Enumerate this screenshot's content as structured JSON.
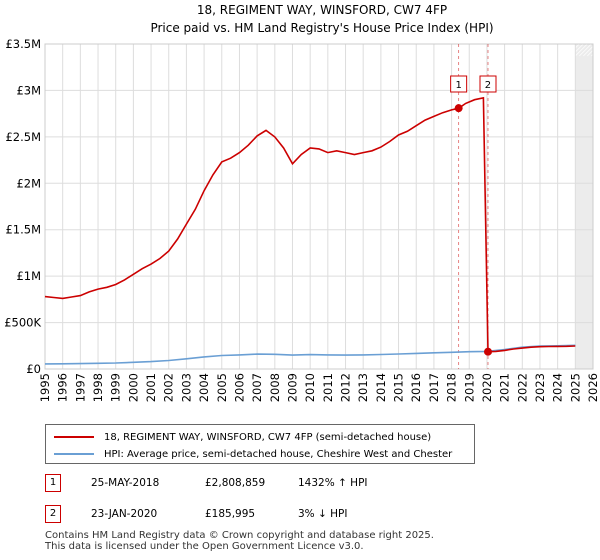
{
  "chart_data": {
    "type": "line",
    "title": "18, REGIMENT WAY, WINSFORD, CW7 4FP",
    "subtitle": "Price paid vs. HM Land Registry's House Price Index (HPI)",
    "xlim": [
      1995,
      2026
    ],
    "ylim": [
      0,
      3500000
    ],
    "x_ticks": [
      "1995",
      "1996",
      "1997",
      "1998",
      "1999",
      "2000",
      "2001",
      "2002",
      "2003",
      "2004",
      "2005",
      "2006",
      "2007",
      "2008",
      "2009",
      "2010",
      "2011",
      "2012",
      "2013",
      "2014",
      "2015",
      "2016",
      "2017",
      "2018",
      "2019",
      "2020",
      "2021",
      "2022",
      "2023",
      "2024",
      "2025",
      "2026"
    ],
    "y_ticks": [
      {
        "value": 0,
        "label": "£0"
      },
      {
        "value": 500000,
        "label": "£500K"
      },
      {
        "value": 1000000,
        "label": "£1M"
      },
      {
        "value": 1500000,
        "label": "£1.5M"
      },
      {
        "value": 2000000,
        "label": "£2M"
      },
      {
        "value": 2500000,
        "label": "£2.5M"
      },
      {
        "value": 3000000,
        "label": "£3M"
      },
      {
        "value": 3500000,
        "label": "£3.5M"
      }
    ],
    "series": [
      {
        "name": "18, REGIMENT WAY, WINSFORD, CW7 4FP (semi-detached house)",
        "color": "#cc0000",
        "points": [
          [
            1995.0,
            780000
          ],
          [
            1995.5,
            770000
          ],
          [
            1996.0,
            760000
          ],
          [
            1996.5,
            775000
          ],
          [
            1997.0,
            790000
          ],
          [
            1997.5,
            830000
          ],
          [
            1998.0,
            860000
          ],
          [
            1998.5,
            880000
          ],
          [
            1999.0,
            910000
          ],
          [
            1999.5,
            960000
          ],
          [
            2000.0,
            1020000
          ],
          [
            2000.5,
            1080000
          ],
          [
            2001.0,
            1130000
          ],
          [
            2001.5,
            1190000
          ],
          [
            2002.0,
            1270000
          ],
          [
            2002.5,
            1400000
          ],
          [
            2003.0,
            1560000
          ],
          [
            2003.5,
            1720000
          ],
          [
            2004.0,
            1920000
          ],
          [
            2004.5,
            2090000
          ],
          [
            2005.0,
            2230000
          ],
          [
            2005.5,
            2270000
          ],
          [
            2006.0,
            2330000
          ],
          [
            2006.5,
            2410000
          ],
          [
            2007.0,
            2510000
          ],
          [
            2007.5,
            2570000
          ],
          [
            2008.0,
            2500000
          ],
          [
            2008.5,
            2380000
          ],
          [
            2009.0,
            2210000
          ],
          [
            2009.5,
            2310000
          ],
          [
            2010.0,
            2380000
          ],
          [
            2010.5,
            2370000
          ],
          [
            2011.0,
            2330000
          ],
          [
            2011.5,
            2350000
          ],
          [
            2012.0,
            2330000
          ],
          [
            2012.5,
            2310000
          ],
          [
            2013.0,
            2330000
          ],
          [
            2013.5,
            2350000
          ],
          [
            2014.0,
            2390000
          ],
          [
            2014.5,
            2450000
          ],
          [
            2015.0,
            2520000
          ],
          [
            2015.5,
            2560000
          ],
          [
            2016.0,
            2620000
          ],
          [
            2016.5,
            2680000
          ],
          [
            2017.0,
            2720000
          ],
          [
            2017.5,
            2760000
          ],
          [
            2018.0,
            2790000
          ],
          [
            2018.4,
            2808859
          ],
          [
            2018.8,
            2860000
          ],
          [
            2019.3,
            2900000
          ],
          [
            2019.8,
            2920000
          ],
          [
            2020.06,
            185995
          ],
          [
            2020.5,
            190000
          ],
          [
            2021.0,
            200000
          ],
          [
            2021.5,
            215000
          ],
          [
            2022.0,
            225000
          ],
          [
            2022.5,
            235000
          ],
          [
            2023.0,
            240000
          ],
          [
            2023.5,
            242000
          ],
          [
            2024.0,
            243000
          ],
          [
            2024.5,
            245000
          ],
          [
            2025.0,
            248000
          ]
        ]
      },
      {
        "name": "HPI: Average price, semi-detached house, Cheshire West and Chester",
        "color": "#6a9fd4",
        "points": [
          [
            1995.0,
            55000
          ],
          [
            1996.0,
            56000
          ],
          [
            1997.0,
            58000
          ],
          [
            1998.0,
            61000
          ],
          [
            1999.0,
            65000
          ],
          [
            2000.0,
            72000
          ],
          [
            2001.0,
            80000
          ],
          [
            2002.0,
            92000
          ],
          [
            2003.0,
            110000
          ],
          [
            2004.0,
            130000
          ],
          [
            2005.0,
            145000
          ],
          [
            2006.0,
            152000
          ],
          [
            2007.0,
            160000
          ],
          [
            2008.0,
            158000
          ],
          [
            2009.0,
            150000
          ],
          [
            2010.0,
            155000
          ],
          [
            2011.0,
            152000
          ],
          [
            2012.0,
            150000
          ],
          [
            2013.0,
            152000
          ],
          [
            2014.0,
            156000
          ],
          [
            2015.0,
            162000
          ],
          [
            2016.0,
            168000
          ],
          [
            2017.0,
            174000
          ],
          [
            2018.0,
            180000
          ],
          [
            2019.0,
            186000
          ],
          [
            2020.0,
            190000
          ],
          [
            2021.0,
            210000
          ],
          [
            2022.0,
            235000
          ],
          [
            2023.0,
            248000
          ],
          [
            2024.0,
            250000
          ],
          [
            2025.0,
            255000
          ]
        ]
      }
    ],
    "annotations": [
      {
        "label": "1",
        "x": 2018.4,
        "y": 2808859
      },
      {
        "label": "2",
        "x": 2020.06,
        "y": 185995
      }
    ],
    "future_shading_from": 2025.0
  },
  "legend": {
    "property": "18, REGIMENT WAY, WINSFORD, CW7 4FP (semi-detached house)",
    "hpi": "HPI: Average price, semi-detached house, Cheshire West and Chester"
  },
  "transactions": [
    {
      "badge": "1",
      "date": "25-MAY-2018",
      "price": "£2,808,859",
      "hpi": "1432% ↑ HPI"
    },
    {
      "badge": "2",
      "date": "23-JAN-2020",
      "price": "£185,995",
      "hpi": "3% ↓ HPI"
    }
  ],
  "footer": {
    "line1": "Contains HM Land Registry data © Crown copyright and database right 2025.",
    "line2": "This data is licensed under the Open Government Licence v3.0."
  },
  "colors": {
    "property": "#cc0000",
    "hpi": "#6a9fd4",
    "grid": "#dddddd",
    "badge_border": "#cc0000"
  }
}
